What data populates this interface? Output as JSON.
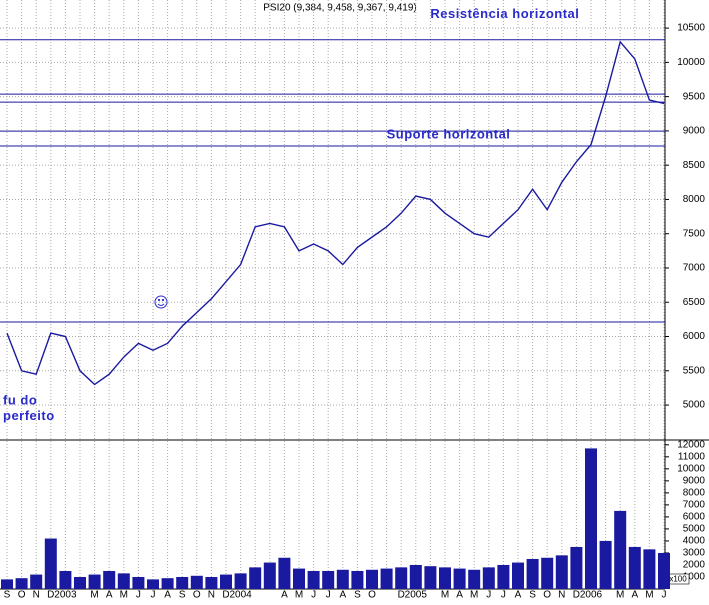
{
  "chart_data": {
    "type": "line",
    "title": "PSI20 (9,384, 9,458, 9,367, 9,419)",
    "categories": [
      "S",
      "O",
      "N",
      "D",
      "2003",
      null,
      "M",
      "A",
      "M",
      "J",
      "J",
      "A",
      "S",
      "O",
      "N",
      "D",
      "2004",
      null,
      null,
      "A",
      "M",
      "J",
      "J",
      "A",
      "S",
      "O",
      null,
      "D",
      "2005",
      null,
      "M",
      "A",
      "M",
      "J",
      "J",
      "A",
      "S",
      "O",
      "N",
      "D",
      "2006",
      null,
      "M",
      "A",
      "M",
      "J"
    ],
    "series": [
      {
        "color": "#1a1aa0",
        "values": [
          6050,
          5500,
          5450,
          6050,
          6000,
          5500,
          5300,
          5450,
          5700,
          5900,
          5800,
          5900,
          6150,
          6350,
          6550,
          6800,
          7050,
          7600,
          7650,
          7600,
          7250,
          7350,
          7250,
          7050,
          7300,
          7450,
          7600,
          7800,
          8050,
          8000,
          7800,
          7650,
          7500,
          7450,
          7650,
          7850,
          8150,
          7850,
          8250,
          8550,
          8800,
          9500,
          10300,
          10050,
          9450,
          9400
        ]
      },
      {
        "type": "bar",
        "axis": "y2",
        "color": "#1a1aa0",
        "values": [
          800,
          900,
          1200,
          4200,
          1500,
          1000,
          1200,
          1500,
          1300,
          1000,
          800,
          900,
          1000,
          1100,
          1000,
          1200,
          1300,
          1800,
          2200,
          2600,
          1700,
          1500,
          1500,
          1600,
          1500,
          1600,
          1700,
          1800,
          2000,
          1900,
          1800,
          1700,
          1600,
          1800,
          2000,
          2200,
          2500,
          2600,
          2800,
          3500,
          11700,
          4000,
          6500,
          3500,
          3300,
          3000
        ]
      }
    ],
    "ylim": [
      4490,
      10910
    ],
    "yticks": [
      5000,
      5500,
      6000,
      6500,
      7000,
      7500,
      8000,
      8500,
      9000,
      9500,
      10000,
      10500
    ],
    "y2lim": [
      0,
      12400
    ],
    "y2ticks": [
      1000,
      2000,
      3000,
      4000,
      5000,
      6000,
      7000,
      8000,
      9000,
      10000,
      11000,
      12000
    ],
    "y2_unit_label": "x100",
    "hlines": [
      10330,
      9537,
      9420,
      8997,
      8779,
      6211
    ],
    "hline_color": "#1a1aa0",
    "annotations": [
      {
        "text": "Resistência horizontal",
        "value": 10700,
        "category": 29
      },
      {
        "text": "Suporte horizontal",
        "value": 8940,
        "category": 26
      },
      {
        "text": "fu do",
        "value": 5060,
        "category": 0
      },
      {
        "text": "perfeito",
        "value": 4830,
        "category": 0
      }
    ],
    "grid": true
  }
}
